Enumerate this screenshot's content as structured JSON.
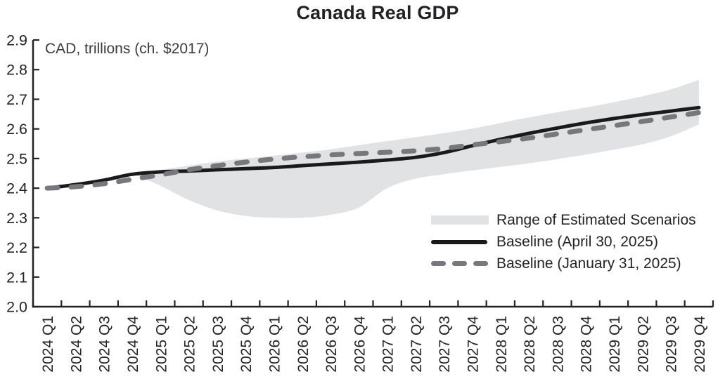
{
  "title": "Canada Real GDP",
  "unit_note": "CAD, trillions (ch. $2017)",
  "legend": {
    "range_label": "Range of Estimated Scenarios",
    "april_label": "Baseline (April 30, 2025)",
    "january_label": "Baseline (January 31, 2025)"
  },
  "colors": {
    "band": "#e1e2e3",
    "solid_line": "#1a1a1c",
    "dashed_line": "#77787b",
    "axis": "#242224",
    "text": "#242224"
  },
  "chart_data": {
    "type": "line",
    "title": "Canada Real GDP",
    "unit_label": "CAD, trillions (ch. $2017)",
    "grid": false,
    "legend_position": "inside-right",
    "ylim": [
      2.0,
      2.9
    ],
    "y_ticks": [
      "2.0",
      "2.1",
      "2.2",
      "2.3",
      "2.4",
      "2.5",
      "2.6",
      "2.7",
      "2.8",
      "2.9"
    ],
    "categories": [
      "2024 Q1",
      "2024 Q2",
      "2024 Q3",
      "2024 Q4",
      "2025 Q1",
      "2025 Q2",
      "2025 Q3",
      "2025 Q4",
      "2026 Q1",
      "2026 Q2",
      "2026 Q3",
      "2026 Q4",
      "2027 Q1",
      "2027 Q2",
      "2027 Q3",
      "2027 Q4",
      "2028 Q1",
      "2028 Q2",
      "2028 Q3",
      "2028 Q4",
      "2029 Q1",
      "2029 Q2",
      "2029 Q3",
      "2029 Q4"
    ],
    "series": [
      {
        "name": "Baseline (April 30, 2025)",
        "style": "solid",
        "values": [
          2.4,
          2.412,
          2.427,
          2.447,
          2.455,
          2.458,
          2.462,
          2.466,
          2.47,
          2.476,
          2.482,
          2.488,
          2.495,
          2.504,
          2.52,
          2.543,
          2.565,
          2.585,
          2.603,
          2.62,
          2.635,
          2.648,
          2.66,
          2.672
        ]
      },
      {
        "name": "Baseline (January 31, 2025)",
        "style": "dashed",
        "values": [
          2.4,
          2.405,
          2.415,
          2.43,
          2.445,
          2.462,
          2.476,
          2.488,
          2.498,
          2.506,
          2.512,
          2.517,
          2.521,
          2.526,
          2.534,
          2.546,
          2.557,
          2.569,
          2.583,
          2.597,
          2.611,
          2.625,
          2.64,
          2.655
        ]
      }
    ],
    "band": {
      "name": "Range of Estimated Scenarios",
      "start_index": 3,
      "upper": [
        2.45,
        2.462,
        2.476,
        2.49,
        2.5,
        2.51,
        2.52,
        2.531,
        2.545,
        2.559,
        2.572,
        2.586,
        2.601,
        2.62,
        2.639,
        2.656,
        2.672,
        2.69,
        2.71,
        2.733,
        2.765
      ],
      "lower": [
        2.45,
        2.408,
        2.36,
        2.325,
        2.306,
        2.3,
        2.3,
        2.31,
        2.335,
        2.4,
        2.432,
        2.447,
        2.46,
        2.472,
        2.484,
        2.498,
        2.513,
        2.53,
        2.548,
        2.575,
        2.615
      ]
    }
  }
}
